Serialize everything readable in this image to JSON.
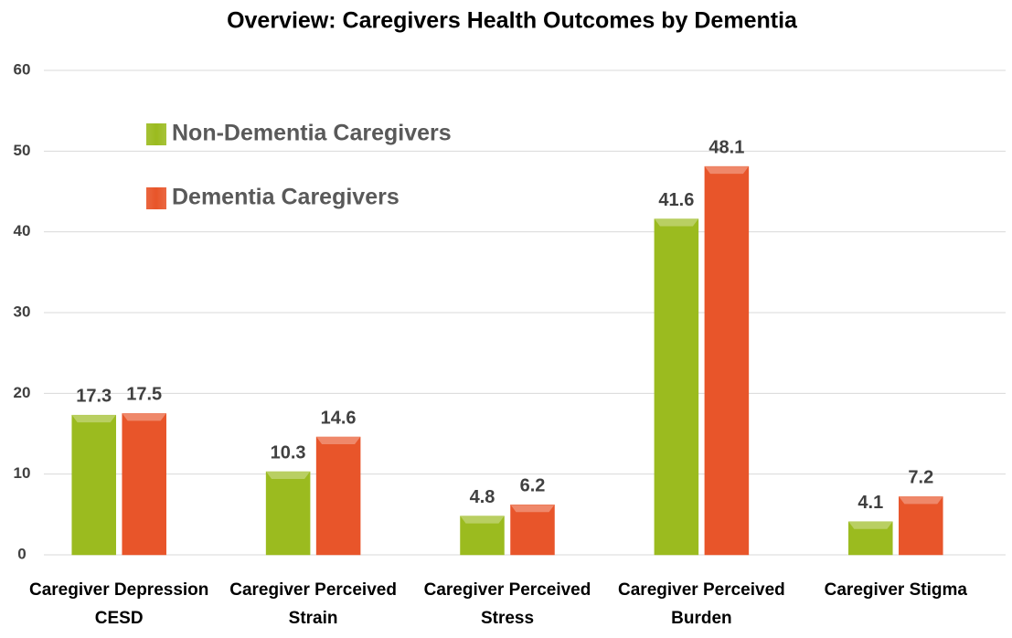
{
  "chart_data": {
    "type": "bar",
    "title": "Overview: Caregivers Health Outcomes by Dementia",
    "categories": [
      "Caregiver Depression CESD",
      "Caregiver Perceived Strain",
      "Caregiver Perceived Stress",
      "Caregiver Perceived Burden",
      "Caregiver Stigma"
    ],
    "series": [
      {
        "name": "Non-Dementia Caregivers",
        "color": "#9bbb1f",
        "values": [
          17.3,
          10.3,
          4.8,
          41.6,
          4.1
        ]
      },
      {
        "name": "Dementia Caregivers",
        "color": "#e8552a",
        "values": [
          17.5,
          14.6,
          6.2,
          48.1,
          7.2
        ]
      }
    ],
    "ylim": [
      0,
      60
    ],
    "yticks": [
      0,
      10,
      20,
      30,
      40,
      50,
      60
    ],
    "grid": true,
    "legend": "upper left"
  }
}
